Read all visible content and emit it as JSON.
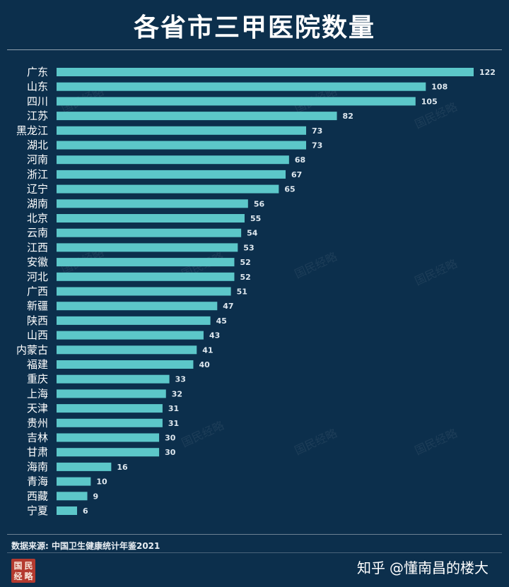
{
  "page": {
    "title": "各省市三甲医院数量",
    "source_note": "数据来源: 中国卫生健康统计年鉴2021",
    "credit": {
      "site": "知乎",
      "author": "@懂南昌的楼大"
    },
    "seal": {
      "text": "国民经略"
    },
    "watermark": {
      "text": "国民经略"
    }
  },
  "colors": {
    "background": "#0c2f4c",
    "bar": "#5cc7c9",
    "label": "#ffffff",
    "value_label": "#dfe8ef"
  },
  "chart_data": {
    "type": "bar",
    "orientation": "horizontal",
    "title": "各省市三甲医院数量",
    "categories": [
      "广东",
      "山东",
      "四川",
      "江苏",
      "黑龙江",
      "湖北",
      "河南",
      "浙江",
      "辽宁",
      "湖南",
      "北京",
      "云南",
      "江西",
      "安徽",
      "河北",
      "广西",
      "新疆",
      "陕西",
      "山西",
      "内蒙古",
      "福建",
      "重庆",
      "上海",
      "天津",
      "贵州",
      "吉林",
      "甘肃",
      "海南",
      "青海",
      "西藏",
      "宁夏"
    ],
    "values": [
      122,
      108,
      105,
      82,
      73,
      73,
      68,
      67,
      65,
      56,
      55,
      54,
      53,
      52,
      52,
      51,
      47,
      45,
      43,
      41,
      40,
      33,
      32,
      31,
      31,
      30,
      30,
      16,
      10,
      9,
      6
    ],
    "xlabel": "",
    "ylabel": "",
    "xlim": [
      0,
      122
    ],
    "grid": false,
    "legend": "none"
  }
}
